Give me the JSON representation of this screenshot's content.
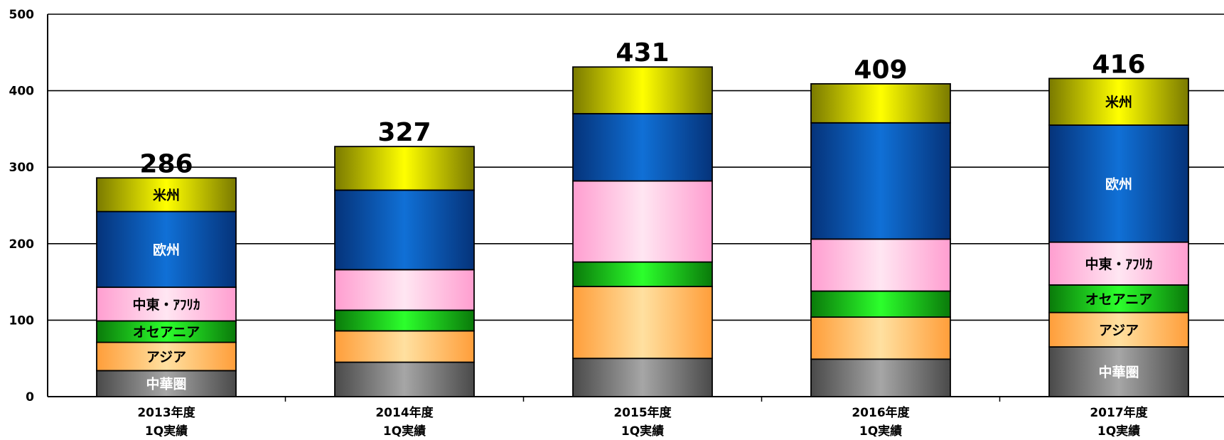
{
  "chart_data": {
    "type": "bar",
    "stacked": true,
    "title": "",
    "xlabel": "",
    "ylabel": "",
    "ylim": [
      0,
      500
    ],
    "yticks": [
      0,
      100,
      200,
      300,
      400,
      500
    ],
    "grid": true,
    "categories": [
      [
        "2013年度",
        "1Q実績"
      ],
      [
        "2014年度",
        "1Q実績"
      ],
      [
        "2015年度",
        "1Q実績"
      ],
      [
        "2016年度",
        "1Q実績"
      ],
      [
        "2017年度",
        "1Q実績"
      ]
    ],
    "totals": [
      "286",
      "327",
      "431",
      "409",
      "416"
    ],
    "series": [
      {
        "name": "中華圏",
        "values": [
          34,
          45,
          50,
          49,
          65
        ],
        "color": "#8c8c8c",
        "labelColor": "#ffffff"
      },
      {
        "name": "アジア",
        "values": [
          37,
          41,
          94,
          55,
          45
        ],
        "color": "#ffc878",
        "labelColor": "#000000"
      },
      {
        "name": "オセアニア",
        "values": [
          28,
          27,
          32,
          34,
          36
        ],
        "color": "#22c822",
        "labelColor": "#000000"
      },
      {
        "name": "中東・ｱﾌﾘｶ",
        "values": [
          44,
          53,
          106,
          68,
          56
        ],
        "color": "#ffc8e6",
        "labelColor": "#000000"
      },
      {
        "name": "欧州",
        "values": [
          99,
          104,
          88,
          152,
          153
        ],
        "color": "#0a5fba",
        "labelColor": "#ffffff"
      },
      {
        "name": "米州",
        "values": [
          44,
          57,
          61,
          51,
          61
        ],
        "color": "#e6e600",
        "labelColor": "#000000"
      }
    ],
    "segment_labels": [
      [
        "中華圏",
        "アジア",
        "オセアニア",
        "中東・ｱﾌﾘｶ",
        "欧州",
        "米州"
      ],
      [
        "",
        "",
        "",
        "",
        "",
        ""
      ],
      [
        "",
        "",
        "",
        "",
        "",
        ""
      ],
      [
        "",
        "",
        "",
        "",
        "",
        ""
      ],
      [
        "中華圏",
        "アジア",
        "オセアニア",
        "中東・ｱﾌﾘｶ",
        "欧州",
        "米州"
      ]
    ]
  }
}
